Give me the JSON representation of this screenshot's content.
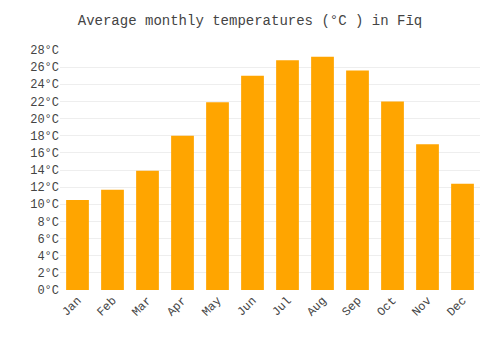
{
  "chart_data": {
    "type": "bar",
    "title": "Average monthly temperatures (°C ) in Fīq",
    "categories": [
      "Jan",
      "Feb",
      "Mar",
      "Apr",
      "May",
      "Jun",
      "Jul",
      "Aug",
      "Sep",
      "Oct",
      "Nov",
      "Dec"
    ],
    "values": [
      10.5,
      11.7,
      13.9,
      18.0,
      21.9,
      25.0,
      26.8,
      27.2,
      25.6,
      22.0,
      17.0,
      12.4
    ],
    "color": "#FFA500",
    "ylim": [
      0,
      28
    ],
    "yticks": [
      {
        "value": 0,
        "label": "0°C"
      },
      {
        "value": 2,
        "label": "2°C"
      },
      {
        "value": 4,
        "label": "4°C"
      },
      {
        "value": 6,
        "label": "6°C"
      },
      {
        "value": 8,
        "label": "8°C"
      },
      {
        "value": 10,
        "label": "10°C"
      },
      {
        "value": 12,
        "label": "12°C"
      },
      {
        "value": 14,
        "label": "14°C"
      },
      {
        "value": 16,
        "label": "16°C"
      },
      {
        "value": 18,
        "label": "18°C"
      },
      {
        "value": 20,
        "label": "20°C"
      },
      {
        "value": 22,
        "label": "22°C"
      },
      {
        "value": 24,
        "label": "24°C"
      },
      {
        "value": 26,
        "label": "26°C"
      },
      {
        "value": 28,
        "label": "28°C"
      }
    ],
    "grid": true
  }
}
